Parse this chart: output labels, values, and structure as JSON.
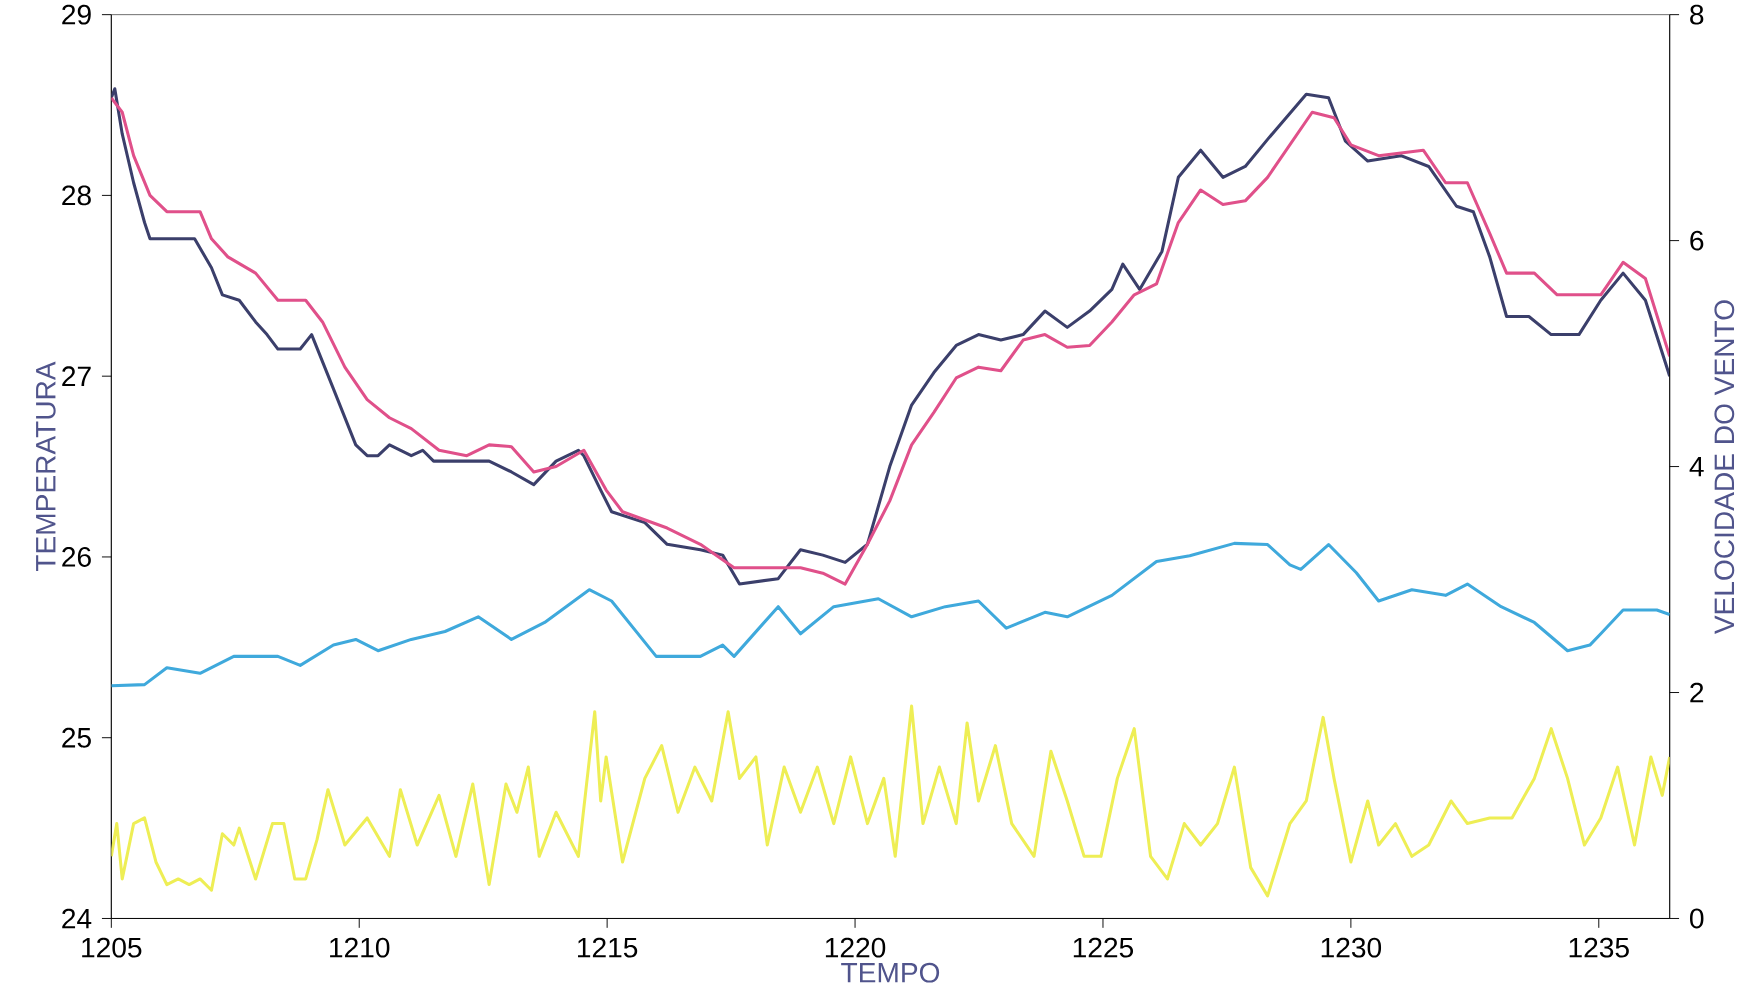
{
  "chart_data": {
    "type": "line",
    "xlabel": "TEMPO",
    "ylabel": "TEMPERATURA",
    "y2label": "VELOCIDADE DO VENTO",
    "xlim": [
      1205,
      1236.43
    ],
    "xticks": [
      1205,
      1210,
      1215,
      1220,
      1225,
      1230,
      1235
    ],
    "ylim": [
      24,
      29
    ],
    "yticks": [
      24,
      25,
      26,
      27,
      28,
      29
    ],
    "y2lim": [
      0,
      8
    ],
    "y2ticks": [
      0,
      2,
      4,
      6,
      8
    ],
    "grid": false,
    "marker": "none",
    "series": [
      {
        "color": "#3b3f6b",
        "x": [
          1205,
          1205.07,
          1205.22,
          1205.45,
          1205.67,
          1205.78,
          1206.68,
          1207.02,
          1207.24,
          1207.58,
          1207.91,
          1208.14,
          1208.36,
          1208.81,
          1209.04,
          1209.48,
          1209.93,
          1210.16,
          1210.38,
          1210.61,
          1211.05,
          1211.28,
          1211.5,
          1212.17,
          1212.62,
          1213.07,
          1213.52,
          1213.97,
          1214.42,
          1214.53,
          1214.87,
          1215.09,
          1215.76,
          1216.21,
          1216.88,
          1217.33,
          1217.67,
          1218.45,
          1218.9,
          1219.35,
          1219.8,
          1220.25,
          1220.7,
          1221.14,
          1221.59,
          1222.04,
          1222.49,
          1222.94,
          1223.39,
          1223.83,
          1224.28,
          1224.73,
          1225.18,
          1225.4,
          1225.74,
          1226.19,
          1226.52,
          1226.97,
          1227.42,
          1227.87,
          1228.32,
          1229.1,
          1229.55,
          1229.89,
          1230.34,
          1231.01,
          1231.57,
          1232.13,
          1232.47,
          1232.8,
          1233.14,
          1233.59,
          1234.04,
          1234.6,
          1235.04,
          1235.49,
          1235.94,
          1236.43
        ],
        "values": [
          28.54,
          28.59,
          28.34,
          28.07,
          27.85,
          27.76,
          27.76,
          27.6,
          27.45,
          27.42,
          27.3,
          27.23,
          27.15,
          27.15,
          27.23,
          26.93,
          26.62,
          26.56,
          26.56,
          26.62,
          26.56,
          26.59,
          26.53,
          26.53,
          26.53,
          26.47,
          26.4,
          26.53,
          26.59,
          26.56,
          26.37,
          26.25,
          26.19,
          26.07,
          26.04,
          26.01,
          25.85,
          25.88,
          26.04,
          26.01,
          25.97,
          26.07,
          26.5,
          26.84,
          27.02,
          27.17,
          27.23,
          27.2,
          27.23,
          27.36,
          27.27,
          27.36,
          27.48,
          27.62,
          27.48,
          27.69,
          28.1,
          28.25,
          28.1,
          28.16,
          28.31,
          28.56,
          28.54,
          28.3,
          28.19,
          28.22,
          28.16,
          27.94,
          27.91,
          27.66,
          27.33,
          27.33,
          27.23,
          27.23,
          27.42,
          27.57,
          27.42,
          27.0
        ]
      },
      {
        "color": "#e0508a",
        "x": [
          1205,
          1205.22,
          1205.45,
          1205.78,
          1206.12,
          1206.79,
          1207.02,
          1207.35,
          1207.91,
          1208.36,
          1208.92,
          1209.26,
          1209.71,
          1210.16,
          1210.61,
          1211.05,
          1211.61,
          1212.17,
          1212.62,
          1213.07,
          1213.52,
          1213.97,
          1214.53,
          1214.98,
          1215.31,
          1216.21,
          1216.88,
          1217.56,
          1218.23,
          1218.9,
          1219.35,
          1219.8,
          1220.25,
          1220.7,
          1221.14,
          1221.59,
          1222.04,
          1222.49,
          1222.94,
          1223.39,
          1223.83,
          1224.28,
          1224.73,
          1225.18,
          1225.63,
          1226.08,
          1226.52,
          1226.97,
          1227.42,
          1227.87,
          1228.32,
          1228.77,
          1229.22,
          1229.66,
          1230.0,
          1230.56,
          1231.46,
          1231.91,
          1232.35,
          1232.8,
          1233.14,
          1233.7,
          1234.16,
          1235.04,
          1235.49,
          1235.94,
          1236.43
        ],
        "values": [
          28.54,
          28.46,
          28.22,
          28.0,
          27.91,
          27.91,
          27.76,
          27.66,
          27.57,
          27.42,
          27.42,
          27.3,
          27.05,
          26.87,
          26.77,
          26.71,
          26.59,
          26.56,
          26.62,
          26.61,
          26.47,
          26.5,
          26.59,
          26.37,
          26.25,
          26.16,
          26.07,
          25.94,
          25.94,
          25.94,
          25.91,
          25.85,
          26.07,
          26.31,
          26.62,
          26.8,
          26.99,
          27.05,
          27.03,
          27.2,
          27.23,
          27.16,
          27.17,
          27.3,
          27.45,
          27.51,
          27.85,
          28.03,
          27.95,
          27.97,
          28.1,
          28.28,
          28.46,
          28.43,
          28.28,
          28.22,
          28.25,
          28.07,
          28.07,
          27.79,
          27.57,
          27.57,
          27.45,
          27.45,
          27.63,
          27.54,
          27.11
        ]
      },
      {
        "color": "#3fa9dc",
        "axis": "y2",
        "x": [
          1205,
          1205.67,
          1206.12,
          1206.79,
          1207.47,
          1208.36,
          1208.81,
          1209.48,
          1209.93,
          1210.38,
          1211.05,
          1211.73,
          1212.4,
          1213.07,
          1213.74,
          1214.64,
          1215.09,
          1215.99,
          1216.88,
          1217.33,
          1217.56,
          1218.45,
          1218.9,
          1219.57,
          1220.47,
          1221.14,
          1221.82,
          1222.49,
          1223.05,
          1223.83,
          1224.28,
          1225.18,
          1226.08,
          1226.75,
          1227.65,
          1228.32,
          1228.77,
          1228.99,
          1229.55,
          1230.11,
          1230.56,
          1231.23,
          1231.91,
          1232.35,
          1233.03,
          1233.7,
          1234.37,
          1234.82,
          1235.04,
          1235.49,
          1236.17,
          1236.43
        ],
        "values": [
          2.06,
          2.07,
          2.22,
          2.17,
          2.32,
          2.32,
          2.24,
          2.42,
          2.47,
          2.37,
          2.47,
          2.54,
          2.67,
          2.47,
          2.62,
          2.91,
          2.81,
          2.32,
          2.32,
          2.42,
          2.32,
          2.76,
          2.52,
          2.76,
          2.83,
          2.67,
          2.76,
          2.81,
          2.57,
          2.71,
          2.67,
          2.86,
          3.16,
          3.21,
          3.32,
          3.31,
          3.13,
          3.09,
          3.31,
          3.06,
          2.81,
          2.91,
          2.86,
          2.96,
          2.76,
          2.62,
          2.37,
          2.42,
          2.52,
          2.73,
          2.73,
          2.69
        ]
      },
      {
        "color": "#eeee55",
        "axis": "y2",
        "x": [
          1205,
          1205.11,
          1205.22,
          1205.45,
          1205.67,
          1205.9,
          1206.12,
          1206.35,
          1206.57,
          1206.79,
          1207.02,
          1207.24,
          1207.47,
          1207.58,
          1207.91,
          1208.25,
          1208.48,
          1208.7,
          1208.92,
          1209.15,
          1209.37,
          1209.71,
          1210.16,
          1210.61,
          1210.83,
          1211.17,
          1211.61,
          1211.95,
          1212.29,
          1212.62,
          1212.96,
          1213.18,
          1213.41,
          1213.63,
          1213.97,
          1214.42,
          1214.75,
          1214.87,
          1214.98,
          1215.31,
          1215.76,
          1216.1,
          1216.43,
          1216.77,
          1217.11,
          1217.44,
          1217.67,
          1218.0,
          1218.23,
          1218.57,
          1218.9,
          1219.24,
          1219.57,
          1219.91,
          1220.25,
          1220.58,
          1220.81,
          1221.14,
          1221.37,
          1221.7,
          1222.04,
          1222.26,
          1222.49,
          1222.83,
          1223.16,
          1223.61,
          1223.95,
          1224.28,
          1224.62,
          1224.96,
          1225.29,
          1225.63,
          1225.96,
          1226.3,
          1226.64,
          1226.97,
          1227.31,
          1227.65,
          1227.98,
          1228.32,
          1228.77,
          1229.1,
          1229.44,
          1229.66,
          1230.0,
          1230.34,
          1230.56,
          1230.9,
          1231.23,
          1231.57,
          1232.02,
          1232.35,
          1232.8,
          1233.25,
          1233.7,
          1234.04,
          1234.37,
          1234.71,
          1235.04,
          1235.38,
          1235.72,
          1236.05,
          1236.28,
          1236.43
        ],
        "values": [
          0.55,
          0.84,
          0.35,
          0.84,
          0.89,
          0.5,
          0.3,
          0.35,
          0.3,
          0.35,
          0.25,
          0.75,
          0.65,
          0.8,
          0.35,
          0.84,
          0.84,
          0.35,
          0.35,
          0.7,
          1.14,
          0.65,
          0.89,
          0.55,
          1.14,
          0.65,
          1.09,
          0.55,
          1.19,
          0.3,
          1.19,
          0.94,
          1.34,
          0.55,
          0.94,
          0.55,
          1.83,
          1.04,
          1.43,
          0.5,
          1.24,
          1.53,
          0.94,
          1.34,
          1.04,
          1.83,
          1.24,
          1.43,
          0.65,
          1.34,
          0.94,
          1.34,
          0.84,
          1.43,
          0.84,
          1.24,
          0.55,
          1.88,
          0.84,
          1.34,
          0.84,
          1.73,
          1.04,
          1.53,
          0.84,
          0.55,
          1.48,
          1.04,
          0.55,
          0.55,
          1.24,
          1.68,
          0.55,
          0.35,
          0.84,
          0.65,
          0.84,
          1.34,
          0.45,
          0.2,
          0.84,
          1.04,
          1.78,
          1.24,
          0.5,
          1.04,
          0.65,
          0.84,
          0.55,
          0.65,
          1.04,
          0.84,
          0.89,
          0.89,
          1.24,
          1.68,
          1.24,
          0.65,
          0.89,
          1.34,
          0.65,
          1.43,
          1.09,
          1.43
        ]
      }
    ]
  }
}
